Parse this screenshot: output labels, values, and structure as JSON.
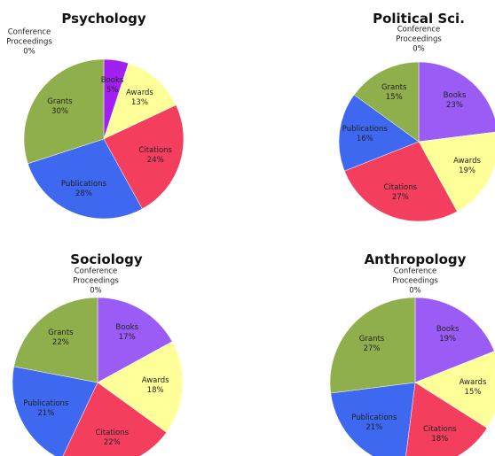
{
  "chart_data": [
    {
      "type": "pie",
      "title": "Psychology",
      "categories": [
        "Books",
        "Awards",
        "Citations",
        "Publications",
        "Grants",
        "Conference Proceedings"
      ],
      "values": [
        5,
        13,
        24,
        28,
        30,
        0
      ],
      "value_labels": [
        "5%",
        "13%",
        "24%",
        "28%",
        "30%",
        "0%"
      ],
      "colors": [
        "#a21ff2",
        "#ffff99",
        "#f43e5e",
        "#3d68ef",
        "#8fae4c",
        "#cccccc"
      ]
    },
    {
      "type": "pie",
      "title": "Political Sci.",
      "categories": [
        "Books",
        "Awards",
        "Citations",
        "Publications",
        "Grants",
        "Conference Proceedings"
      ],
      "values": [
        23,
        19,
        27,
        16,
        15,
        0
      ],
      "value_labels": [
        "23%",
        "19%",
        "27%",
        "16%",
        "15%",
        "0%"
      ],
      "colors": [
        "#9b5cf5",
        "#ffff99",
        "#f43e5e",
        "#3d68ef",
        "#8fae4c",
        "#cccccc"
      ]
    },
    {
      "type": "pie",
      "title": "Sociology",
      "categories": [
        "Books",
        "Awards",
        "Citations",
        "Publications",
        "Grants",
        "Conference Proceedings"
      ],
      "values": [
        17,
        18,
        22,
        21,
        22,
        0
      ],
      "value_labels": [
        "17%",
        "18%",
        "22%",
        "21%",
        "22%",
        "0%"
      ],
      "colors": [
        "#9b5cf5",
        "#ffff99",
        "#f43e5e",
        "#3d68ef",
        "#8fae4c",
        "#cccccc"
      ]
    },
    {
      "type": "pie",
      "title": "Anthropology",
      "categories": [
        "Books",
        "Awards",
        "Citations",
        "Publications",
        "Grants",
        "Conference Proceedings"
      ],
      "values": [
        19,
        15,
        18,
        21,
        27,
        0
      ],
      "value_labels": [
        "19%",
        "15%",
        "18%",
        "21%",
        "27%",
        "0%"
      ],
      "colors": [
        "#9b5cf5",
        "#ffff99",
        "#f43e5e",
        "#3d68ef",
        "#8fae4c",
        "#cccccc"
      ]
    }
  ]
}
